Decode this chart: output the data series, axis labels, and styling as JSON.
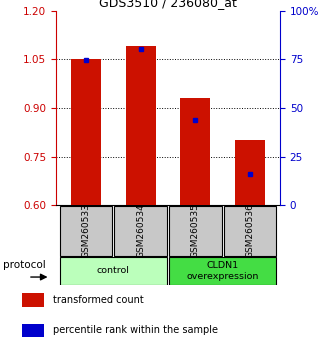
{
  "title": "GDS3510 / 236080_at",
  "samples": [
    "GSM260533",
    "GSM260534",
    "GSM260535",
    "GSM260536"
  ],
  "bar_tops": [
    1.05,
    1.09,
    0.93,
    0.8
  ],
  "bar_bottom": 0.6,
  "blue_markers": [
    1.047,
    1.082,
    0.863,
    0.695
  ],
  "bar_color": "#cc1100",
  "marker_color": "#0000cc",
  "ylim": [
    0.6,
    1.2
  ],
  "yticks_left": [
    0.6,
    0.75,
    0.9,
    1.05,
    1.2
  ],
  "yticks_right": [
    0,
    25,
    50,
    75,
    100
  ],
  "groups": [
    {
      "label": "control",
      "samples": [
        0,
        1
      ],
      "color": "#bbffbb"
    },
    {
      "label": "CLDN1\noverexpression",
      "samples": [
        2,
        3
      ],
      "color": "#44dd44"
    }
  ],
  "protocol_label": "protocol",
  "legend_items": [
    {
      "color": "#cc1100",
      "label": "transformed count"
    },
    {
      "color": "#0000cc",
      "label": "percentile rank within the sample"
    }
  ],
  "sample_box_color": "#c8c8c8",
  "left_axis_color": "#cc0000",
  "right_axis_color": "#0000cc",
  "grid_yticks": [
    0.75,
    0.9,
    1.05
  ]
}
